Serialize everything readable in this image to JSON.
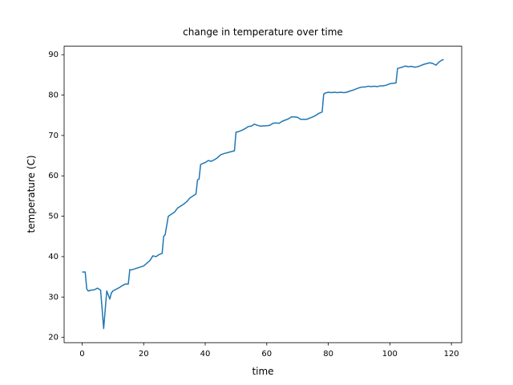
{
  "chart_data": {
    "type": "line",
    "title": "change in temperature over time",
    "x_label": "time",
    "y_label": "temperature (C)",
    "x": [
      0,
      1,
      1.5,
      2,
      3,
      4,
      5,
      6,
      7,
      8,
      9,
      9.5,
      10,
      12,
      13,
      14,
      15,
      15.5,
      16,
      18,
      20,
      22,
      23,
      24,
      25,
      26,
      26.5,
      27,
      28,
      29,
      30,
      31,
      32,
      33,
      34,
      35,
      36,
      37,
      37.5,
      38,
      38.5,
      39,
      40,
      41,
      42,
      43,
      44,
      45,
      46,
      48,
      49.5,
      50,
      51,
      52,
      53,
      54,
      55,
      56,
      57,
      58,
      60,
      61,
      62,
      63,
      64,
      65,
      66,
      67,
      68,
      69,
      70,
      71,
      72,
      73,
      74,
      75,
      76,
      77,
      78,
      78.5,
      79,
      80,
      81,
      82,
      83,
      84,
      85,
      86,
      87,
      88,
      89,
      90,
      91,
      92,
      93,
      94,
      95,
      96,
      97,
      98,
      99,
      100,
      102,
      102.5,
      103,
      104,
      105,
      106,
      107,
      108,
      109,
      110,
      111,
      112,
      113,
      114,
      115,
      116,
      117,
      117.5
    ],
    "series": [
      {
        "name": "temperature",
        "color": "#1f77b4",
        "values": [
          36.2,
          36.2,
          32,
          31.5,
          31.7,
          31.8,
          32.2,
          31.7,
          22.2,
          31.5,
          29.5,
          31,
          31.5,
          32.3,
          32.8,
          33.2,
          33.2,
          36.8,
          36.7,
          37.2,
          37.7,
          39,
          40.2,
          40,
          40.5,
          40.8,
          45,
          45.5,
          50,
          50.5,
          51,
          52,
          52.5,
          53,
          53.6,
          54.5,
          55,
          55.5,
          59,
          59.2,
          62.8,
          63,
          63.3,
          63.8,
          63.6,
          64,
          64.5,
          65.2,
          65.5,
          65.9,
          66.2,
          70.8,
          71,
          71.3,
          71.7,
          72.2,
          72.3,
          72.8,
          72.5,
          72.3,
          72.4,
          72.5,
          73,
          73.1,
          73,
          73.5,
          73.8,
          74.1,
          74.6,
          74.6,
          74.5,
          74,
          74,
          74,
          74.3,
          74.6,
          75,
          75.5,
          75.8,
          80.2,
          80.5,
          80.7,
          80.6,
          80.7,
          80.6,
          80.7,
          80.6,
          80.7,
          81,
          81.2,
          81.5,
          81.8,
          82,
          82,
          82.2,
          82.1,
          82.2,
          82.1,
          82.3,
          82.3,
          82.5,
          82.8,
          83,
          86.6,
          86.7,
          86.9,
          87.2,
          87,
          87.1,
          86.9,
          87,
          87.3,
          87.6,
          87.8,
          88,
          87.8,
          87.4,
          88.2,
          88.7,
          88.8
        ]
      }
    ],
    "xlim": [
      -5.85,
      123.35
    ],
    "ylim": [
      18.7,
      92.1
    ],
    "xticks": [
      0,
      20,
      40,
      60,
      80,
      100,
      120
    ],
    "yticks": [
      20,
      30,
      40,
      50,
      60,
      70,
      80,
      90
    ]
  }
}
